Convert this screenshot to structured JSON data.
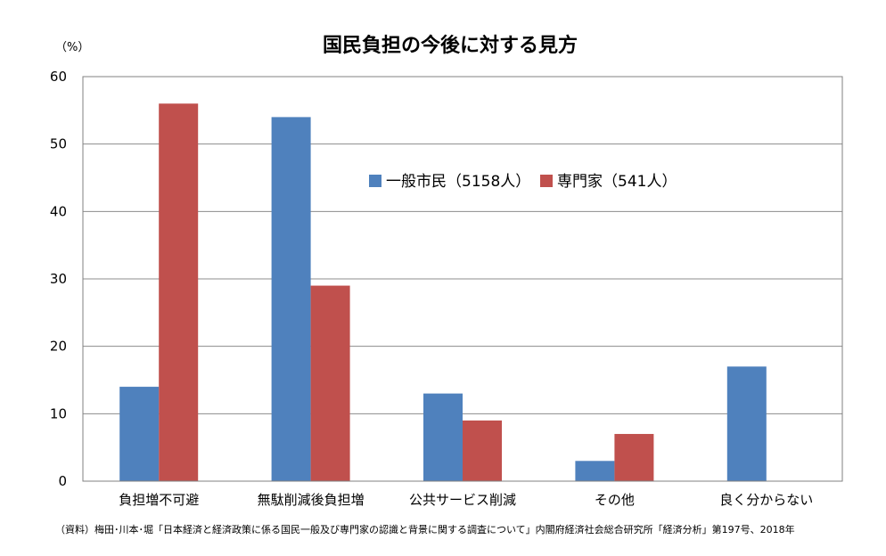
{
  "chart_data": {
    "type": "bar",
    "title": "国民負担の今後に対する見方",
    "unit_label": "（%）",
    "categories": [
      "負担増不可避",
      "無駄削減後負担増",
      "公共サービス削減",
      "その他",
      "良く分からない"
    ],
    "series": [
      {
        "name": "一般市民（5158人）",
        "color": "#4f81bd",
        "values": [
          14,
          54,
          13,
          3,
          17
        ]
      },
      {
        "name": "専門家（541人）",
        "color": "#c0504d",
        "values": [
          56,
          29,
          9,
          7,
          0
        ]
      }
    ],
    "ylim": [
      0,
      60
    ],
    "yticks": [
      0,
      10,
      20,
      30,
      40,
      50,
      60
    ],
    "grid": true,
    "legend_position": "top-center",
    "source": "（資料）梅田･川本･堀「日本経済と経済政策に係る国民一般及び専門家の認識と背景に関する調査について」内閣府経済社会総合研究所「経済分析」第197号、2018年"
  }
}
